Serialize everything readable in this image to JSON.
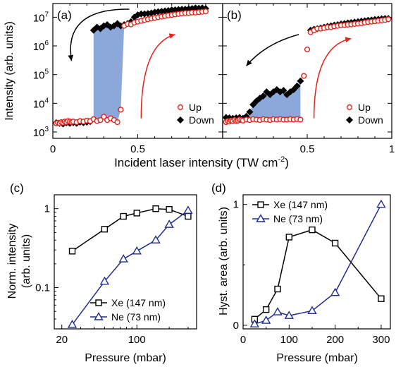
{
  "figure": {
    "shared_xlabel": "Incident laser intensity (TW cm",
    "shared_xlabel_sup": "-2",
    "shared_xlabel_tail": ")"
  },
  "colors": {
    "up": "#e32219",
    "down": "#000000",
    "fill": "#7f9fd6",
    "xe": "#000000",
    "ne": "#1f2d8f",
    "arrow_up": "#e32219",
    "arrow_down": "#000000"
  },
  "chart_data": [
    {
      "panel": "(a)",
      "type": "scatter",
      "ylabel": "Intensity (arb. units)",
      "yscale": "log",
      "xlim": [
        0,
        1.0
      ],
      "ylim": [
        600,
        30000000
      ],
      "xticks": [
        "0",
        "0.5"
      ],
      "yticks": [
        "10^3",
        "10^4",
        "10^5",
        "10^6",
        "10^7"
      ],
      "legend": [
        "Up",
        "Down"
      ],
      "legend_position": "bottom-right",
      "series": [
        {
          "name": "Up",
          "marker": "open-circle",
          "x": [
            0.02,
            0.03,
            0.04,
            0.05,
            0.06,
            0.07,
            0.08,
            0.09,
            0.1,
            0.11,
            0.12,
            0.14,
            0.16,
            0.18,
            0.2,
            0.22,
            0.24,
            0.26,
            0.28,
            0.3,
            0.32,
            0.34,
            0.36,
            0.38,
            0.4,
            0.42,
            0.44,
            0.46,
            0.48,
            0.5,
            0.52,
            0.54,
            0.56,
            0.58,
            0.6,
            0.62,
            0.64,
            0.66,
            0.68,
            0.7,
            0.72,
            0.74,
            0.76,
            0.78,
            0.8,
            0.82,
            0.84,
            0.86,
            0.88,
            0.9
          ],
          "y": [
            2000,
            2100,
            2000,
            2200,
            2100,
            2300,
            2200,
            2400,
            2300,
            2200,
            2300,
            2200,
            2400,
            2300,
            2500,
            2400,
            2800,
            2400,
            2600,
            3400,
            2600,
            3000,
            2600,
            2200,
            6000,
            5000000,
            5800000,
            5600000,
            6500000,
            7000000,
            7500000,
            8000000,
            8500000,
            9000000,
            9500000,
            10000000,
            10500000,
            11000000,
            11500000,
            12000000,
            12500000,
            13000000,
            13500000,
            14000000,
            14000000,
            14500000,
            14500000,
            15000000,
            15500000,
            16000000
          ]
        },
        {
          "name": "Down",
          "marker": "filled-diamond",
          "x": [
            0.9,
            0.88,
            0.86,
            0.84,
            0.82,
            0.8,
            0.78,
            0.76,
            0.74,
            0.72,
            0.7,
            0.68,
            0.66,
            0.64,
            0.62,
            0.6,
            0.58,
            0.56,
            0.54,
            0.52,
            0.5,
            0.48,
            0.46,
            0.44,
            0.42,
            0.4,
            0.38,
            0.36,
            0.34,
            0.32,
            0.3,
            0.28,
            0.26,
            0.24,
            0.22,
            0.2,
            0.18,
            0.16,
            0.14,
            0.12,
            0.1,
            0.08,
            0.06,
            0.04,
            0.02
          ],
          "y": [
            20000000,
            21000000,
            20500000,
            21000000,
            20000000,
            19500000,
            19000000,
            19000000,
            18500000,
            18000000,
            18000000,
            17000000,
            16500000,
            16000000,
            15500000,
            15000000,
            14000000,
            13500000,
            13000000,
            13000000,
            12000000,
            10000000,
            7000000,
            6000000,
            5500000,
            5000000,
            6000000,
            5000000,
            4500000,
            5500000,
            5000000,
            4000000,
            4500000,
            3500000,
            2300,
            2200,
            2100,
            2200,
            2000,
            2100,
            2000,
            2100,
            1900,
            2000,
            2100
          ]
        }
      ]
    },
    {
      "panel": "(b)",
      "type": "scatter",
      "yscale": "log",
      "xlim": [
        0,
        1.0
      ],
      "ylim": [
        600,
        30000000
      ],
      "xticks": [
        "0.5",
        "1"
      ],
      "legend": [
        "Up",
        "Down"
      ],
      "legend_position": "bottom-right",
      "series": [
        {
          "name": "Up",
          "marker": "open-circle",
          "x": [
            0.02,
            0.03,
            0.04,
            0.05,
            0.06,
            0.07,
            0.08,
            0.09,
            0.1,
            0.11,
            0.12,
            0.14,
            0.16,
            0.18,
            0.2,
            0.22,
            0.24,
            0.26,
            0.28,
            0.3,
            0.32,
            0.34,
            0.36,
            0.38,
            0.4,
            0.42,
            0.44,
            0.46,
            0.48,
            0.5,
            0.52,
            0.54,
            0.56,
            0.58,
            0.6,
            0.62,
            0.64,
            0.66,
            0.68,
            0.7,
            0.72,
            0.74,
            0.76,
            0.78,
            0.8,
            0.82,
            0.84,
            0.86,
            0.88,
            0.9,
            0.92,
            0.94,
            0.96,
            0.98
          ],
          "y": [
            2200,
            2400,
            2300,
            2500,
            2400,
            2600,
            2400,
            2500,
            2700,
            2600,
            2500,
            2700,
            2600,
            2800,
            2700,
            2600,
            2800,
            2700,
            2600,
            2800,
            2700,
            2800,
            2700,
            2700,
            2800,
            2700,
            2800,
            2700,
            90000,
            750000,
            3000000,
            3500000,
            4000000,
            4000000,
            4200000,
            4500000,
            4500000,
            4800000,
            5000000,
            5200000,
            5300000,
            5500000,
            5600000,
            5800000,
            6000000,
            6200000,
            6500000,
            6800000,
            7000000,
            7200000,
            7500000,
            7800000,
            8000000,
            8500000
          ]
        },
        {
          "name": "Down",
          "marker": "filled-diamond",
          "x": [
            0.98,
            0.96,
            0.94,
            0.92,
            0.9,
            0.88,
            0.86,
            0.84,
            0.82,
            0.8,
            0.78,
            0.76,
            0.74,
            0.72,
            0.7,
            0.68,
            0.66,
            0.64,
            0.62,
            0.6,
            0.58,
            0.56,
            0.54,
            0.52,
            0.46,
            0.44,
            0.42,
            0.4,
            0.38,
            0.36,
            0.34,
            0.32,
            0.3,
            0.28,
            0.26,
            0.24,
            0.22,
            0.2,
            0.18,
            0.16,
            0.14,
            0.12,
            0.1,
            0.08,
            0.06,
            0.04,
            0.02
          ],
          "y": [
            9000000,
            9000000,
            8800000,
            8500000,
            8300000,
            8000000,
            7800000,
            7500000,
            7300000,
            7000000,
            6800000,
            6500000,
            6300000,
            6000000,
            5800000,
            5500000,
            5300000,
            5000000,
            4800000,
            4500000,
            4200000,
            4000000,
            3800000,
            3500000,
            60000,
            40000,
            30000,
            25000,
            20000,
            28000,
            25000,
            30000,
            25000,
            20000,
            25000,
            18000,
            15000,
            12000,
            9000,
            5000,
            3500,
            3000,
            3200,
            3100,
            3000,
            3100,
            3200
          ]
        }
      ]
    },
    {
      "panel": "(c)",
      "type": "line",
      "xlabel": "Pressure (mbar)",
      "ylabel_line1": "Norm. intensity",
      "ylabel_line2": "(arb. units)",
      "xscale": "log",
      "yscale": "log",
      "xlim": [
        17,
        360
      ],
      "ylim": [
        0.03,
        1.5
      ],
      "xticks": [
        "20",
        "100"
      ],
      "yticks": [
        "0.1",
        "1"
      ],
      "legend_position": "bottom-right",
      "series": [
        {
          "name": "Xe (147 nm)",
          "marker": "open-square",
          "x": [
            25,
            50,
            75,
            100,
            150,
            200,
            300
          ],
          "y": [
            0.29,
            0.55,
            0.8,
            0.88,
            1.0,
            0.98,
            0.8
          ]
        },
        {
          "name": "Ne (73 nm)",
          "marker": "open-triangle",
          "x": [
            25,
            50,
            75,
            100,
            150,
            200,
            300
          ],
          "y": [
            0.034,
            0.12,
            0.23,
            0.29,
            0.4,
            0.63,
            0.95
          ]
        }
      ]
    },
    {
      "panel": "(d)",
      "type": "line",
      "xlabel": "Pressure (mbar)",
      "ylabel": "Hyst. area (arb. units)",
      "xlim": [
        0,
        320
      ],
      "ylim": [
        -0.03,
        1.08
      ],
      "xticks": [
        "0",
        "100",
        "200",
        "300"
      ],
      "yticks": [
        "0",
        "1"
      ],
      "legend_position": "top-left",
      "series": [
        {
          "name": "Xe (147 nm)",
          "marker": "open-square",
          "x": [
            25,
            50,
            75,
            100,
            150,
            200,
            300
          ],
          "y": [
            0.05,
            0.13,
            0.3,
            0.73,
            0.79,
            0.68,
            0.22
          ]
        },
        {
          "name": "Ne (73 nm)",
          "marker": "open-triangle",
          "x": [
            25,
            50,
            75,
            100,
            150,
            200,
            300
          ],
          "y": [
            0.01,
            0.04,
            0.11,
            0.08,
            0.12,
            0.27,
            1.0
          ]
        }
      ]
    }
  ]
}
